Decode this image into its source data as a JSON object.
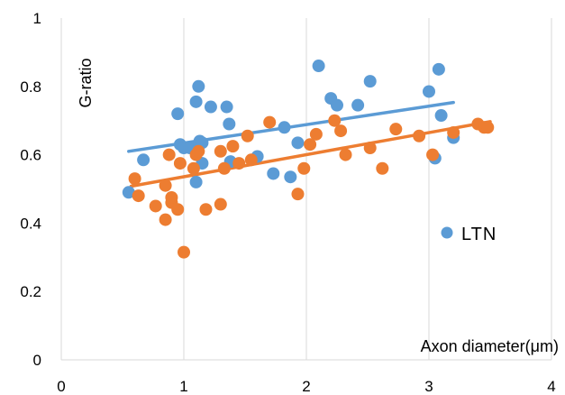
{
  "chart_data": {
    "type": "scatter",
    "xlabel": "Axon diameter(μm)",
    "ylabel": "G-ratio",
    "xlim": [
      0,
      4
    ],
    "ylim": [
      0,
      1
    ],
    "x_ticks": [
      "0",
      "1",
      "2",
      "3",
      "4"
    ],
    "y_ticks": [
      "0",
      "0.2",
      "0.4",
      "0.6",
      "0.8",
      "1"
    ],
    "grid": "vertical",
    "legend_position": "right",
    "series": [
      {
        "name": "LTN",
        "color": "#5b9bd5",
        "trendline": {
          "x": [
            0.55,
            3.2
          ],
          "y": [
            0.61,
            0.753
          ]
        },
        "points": [
          [
            0.55,
            0.49
          ],
          [
            0.67,
            0.585
          ],
          [
            0.95,
            0.72
          ],
          [
            0.97,
            0.63
          ],
          [
            1.0,
            0.62
          ],
          [
            1.05,
            0.62
          ],
          [
            1.1,
            0.755
          ],
          [
            1.1,
            0.52
          ],
          [
            1.12,
            0.8
          ],
          [
            1.13,
            0.64
          ],
          [
            1.15,
            0.635
          ],
          [
            1.15,
            0.575
          ],
          [
            1.22,
            0.74
          ],
          [
            1.35,
            0.74
          ],
          [
            1.37,
            0.69
          ],
          [
            1.38,
            0.58
          ],
          [
            1.6,
            0.595
          ],
          [
            1.73,
            0.545
          ],
          [
            1.82,
            0.68
          ],
          [
            1.87,
            0.535
          ],
          [
            1.93,
            0.635
          ],
          [
            2.1,
            0.86
          ],
          [
            2.2,
            0.765
          ],
          [
            2.25,
            0.745
          ],
          [
            2.42,
            0.745
          ],
          [
            2.52,
            0.815
          ],
          [
            3.0,
            0.785
          ],
          [
            3.05,
            0.59
          ],
          [
            3.08,
            0.85
          ],
          [
            3.1,
            0.715
          ],
          [
            3.2,
            0.65
          ]
        ]
      },
      {
        "name": "",
        "color": "#ed7d31",
        "trendline": {
          "x": [
            0.57,
            3.5
          ],
          "y": [
            0.508,
            0.697
          ]
        },
        "points": [
          [
            0.6,
            0.53
          ],
          [
            0.63,
            0.48
          ],
          [
            0.77,
            0.45
          ],
          [
            0.85,
            0.41
          ],
          [
            0.85,
            0.51
          ],
          [
            0.88,
            0.6
          ],
          [
            0.9,
            0.46
          ],
          [
            0.9,
            0.475
          ],
          [
            0.95,
            0.44
          ],
          [
            0.97,
            0.575
          ],
          [
            1.0,
            0.315
          ],
          [
            1.08,
            0.56
          ],
          [
            1.1,
            0.6
          ],
          [
            1.12,
            0.61
          ],
          [
            1.18,
            0.44
          ],
          [
            1.3,
            0.61
          ],
          [
            1.3,
            0.455
          ],
          [
            1.33,
            0.56
          ],
          [
            1.4,
            0.625
          ],
          [
            1.45,
            0.575
          ],
          [
            1.52,
            0.655
          ],
          [
            1.55,
            0.585
          ],
          [
            1.7,
            0.695
          ],
          [
            1.93,
            0.485
          ],
          [
            1.98,
            0.56
          ],
          [
            2.03,
            0.63
          ],
          [
            2.08,
            0.66
          ],
          [
            2.23,
            0.7
          ],
          [
            2.28,
            0.67
          ],
          [
            2.32,
            0.6
          ],
          [
            2.52,
            0.62
          ],
          [
            2.62,
            0.56
          ],
          [
            2.73,
            0.675
          ],
          [
            2.92,
            0.655
          ],
          [
            3.03,
            0.6
          ],
          [
            3.2,
            0.665
          ],
          [
            3.4,
            0.69
          ],
          [
            3.45,
            0.68
          ],
          [
            3.48,
            0.68
          ]
        ]
      }
    ]
  }
}
